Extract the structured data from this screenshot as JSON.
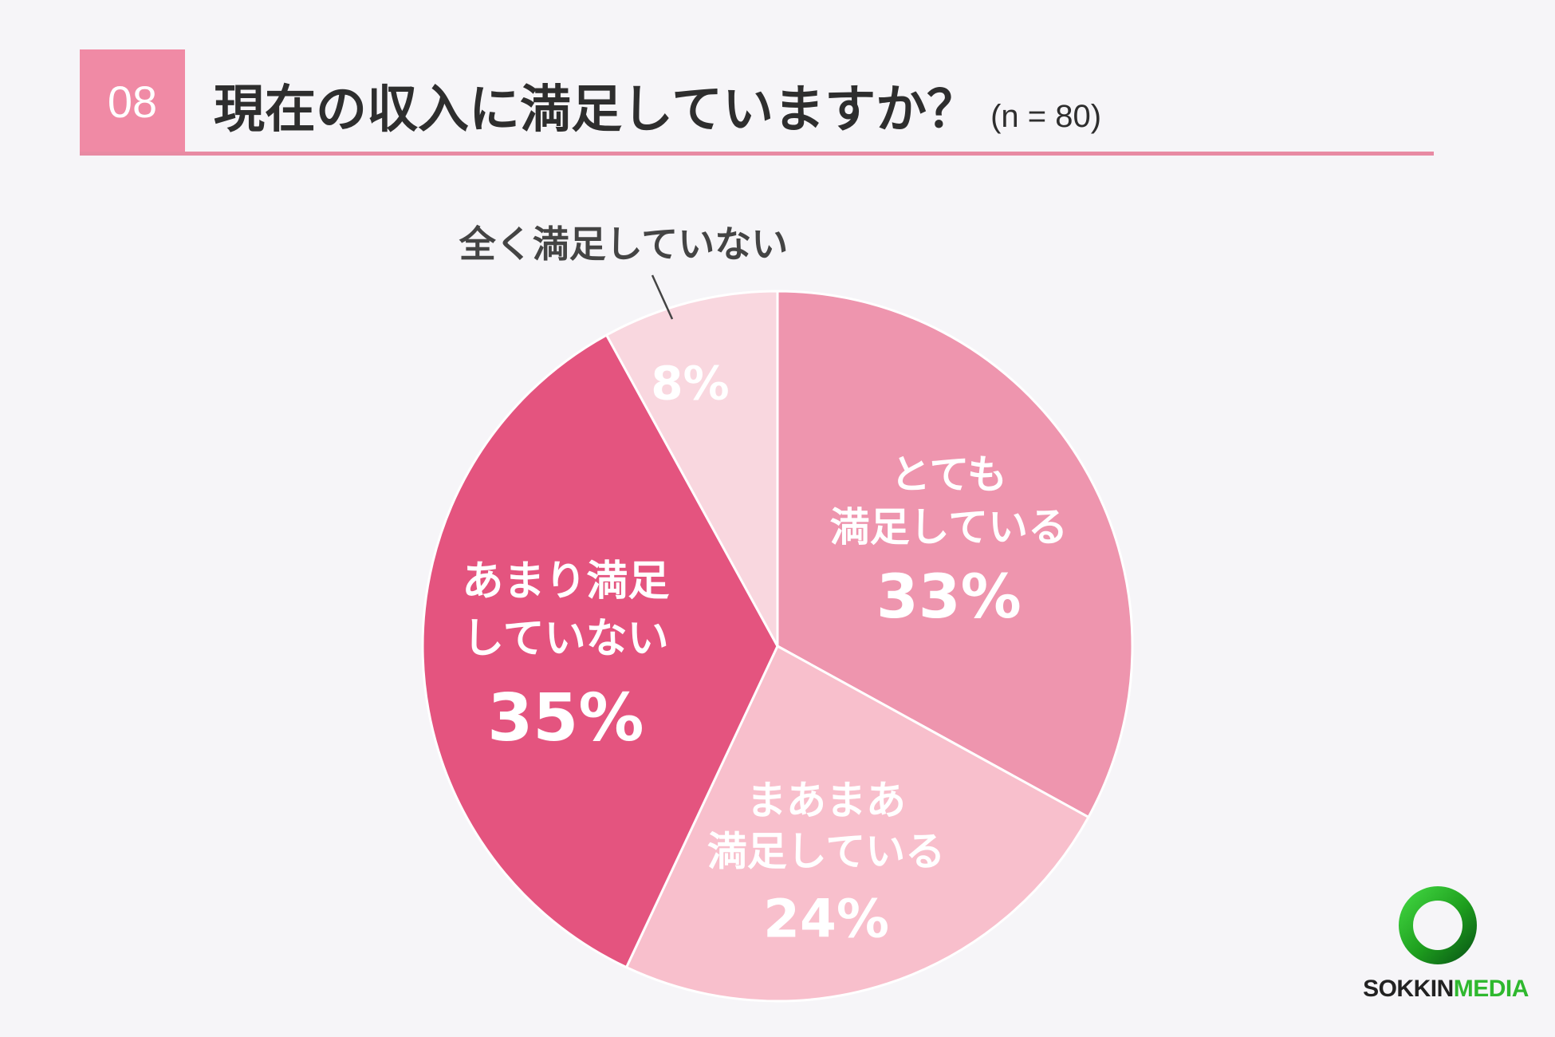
{
  "header": {
    "number": "08",
    "title": "現在の収入に満足していますか？",
    "sample_size": "(n = 80)"
  },
  "chart_data": {
    "type": "pie",
    "title": "現在の収入に満足していますか？",
    "unit": "%",
    "slices": [
      {
        "label_lines": [
          "とても",
          "満足している"
        ],
        "value": 33,
        "value_label": "33%",
        "color": "#ee95ae"
      },
      {
        "label_lines": [
          "まあまあ",
          "満足している"
        ],
        "value": 24,
        "value_label": "24%",
        "color": "#f8bfcc"
      },
      {
        "label_lines": [
          "あまり満足",
          "していない"
        ],
        "value": 35,
        "value_label": "35%",
        "color": "#e4547f"
      },
      {
        "label_lines": [
          "全く満足していない"
        ],
        "value": 8,
        "value_label": "8%",
        "color": "#f9d7df",
        "label_outside": true
      }
    ],
    "start": "12 o'clock",
    "direction": "clockwise"
  },
  "brand": {
    "logo_part1": "SOKKIN",
    "logo_part2": "MEDIA",
    "accent": "#2fb82f"
  }
}
